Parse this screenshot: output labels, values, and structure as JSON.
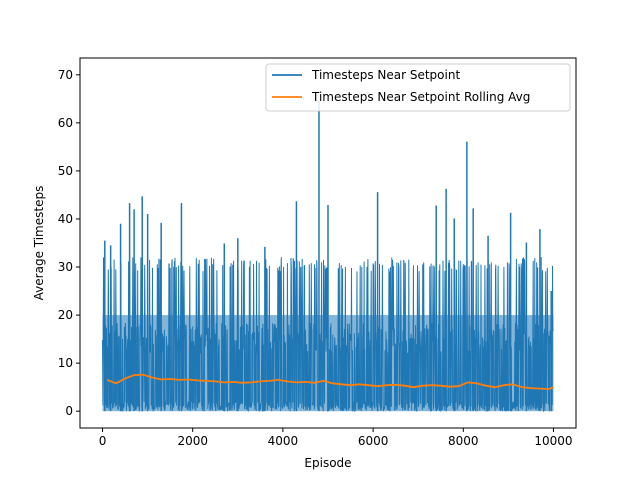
{
  "chart_data": {
    "type": "line",
    "title": "",
    "xlabel": "Episode",
    "ylabel": "Average Timesteps",
    "xlim": [
      -500,
      10500
    ],
    "ylim": [
      -3.5,
      73.5
    ],
    "x_ticks": [
      0,
      2000,
      4000,
      6000,
      8000,
      10000
    ],
    "x_tick_labels": [
      "0",
      "2000",
      "4000",
      "6000",
      "8000",
      "10000"
    ],
    "y_ticks": [
      0,
      10,
      20,
      30,
      40,
      50,
      60,
      70
    ],
    "y_tick_labels": [
      "0",
      "10",
      "20",
      "30",
      "40",
      "50",
      "60",
      "70"
    ],
    "grid": false,
    "legend_position": "top-right",
    "series": [
      {
        "name": "Timesteps Near Setpoint",
        "color": "#1f77b4",
        "x_range": [
          0,
          10000
        ],
        "band_y_range": [
          0,
          20
        ],
        "points": [
          {
            "x": 50,
            "y": 35.5
          },
          {
            "x": 180,
            "y": 34.5
          },
          {
            "x": 400,
            "y": 39
          },
          {
            "x": 600,
            "y": 43.3
          },
          {
            "x": 700,
            "y": 42
          },
          {
            "x": 880,
            "y": 44.7
          },
          {
            "x": 1000,
            "y": 41
          },
          {
            "x": 1300,
            "y": 39.2
          },
          {
            "x": 1750,
            "y": 43.3
          },
          {
            "x": 2700,
            "y": 34.9
          },
          {
            "x": 3000,
            "y": 36
          },
          {
            "x": 3600,
            "y": 34.2
          },
          {
            "x": 4300,
            "y": 43.7
          },
          {
            "x": 4800,
            "y": 64.6
          },
          {
            "x": 5000,
            "y": 42.9
          },
          {
            "x": 6100,
            "y": 45.6
          },
          {
            "x": 7400,
            "y": 42.8
          },
          {
            "x": 7620,
            "y": 46.3
          },
          {
            "x": 7800,
            "y": 40.1
          },
          {
            "x": 8080,
            "y": 56.1
          },
          {
            "x": 8220,
            "y": 42.2
          },
          {
            "x": 8550,
            "y": 36.5
          },
          {
            "x": 9050,
            "y": 41.3
          },
          {
            "x": 9400,
            "y": 35.1
          },
          {
            "x": 9700,
            "y": 37.9
          },
          {
            "x": 9950,
            "y": 25
          }
        ]
      },
      {
        "name": "Timesteps Near Setpoint Rolling Avg",
        "color": "#ff7f0e",
        "x": [
          100,
          300,
          500,
          700,
          900,
          1100,
          1300,
          1500,
          1700,
          1900,
          2100,
          2300,
          2500,
          2700,
          2900,
          3100,
          3300,
          3500,
          3700,
          3900,
          4100,
          4300,
          4500,
          4700,
          4900,
          5100,
          5300,
          5500,
          5700,
          5900,
          6100,
          6300,
          6500,
          6700,
          6900,
          7100,
          7300,
          7500,
          7700,
          7900,
          8100,
          8300,
          8500,
          8700,
          8900,
          9100,
          9300,
          9500,
          9700,
          9900,
          10000
        ],
        "values": [
          6.5,
          5.8,
          6.8,
          7.5,
          7.6,
          7.0,
          6.6,
          6.7,
          6.5,
          6.6,
          6.4,
          6.3,
          6.2,
          6.0,
          6.1,
          5.9,
          6.0,
          6.2,
          6.3,
          6.5,
          6.2,
          6.0,
          6.1,
          5.9,
          6.3,
          5.8,
          5.6,
          5.4,
          5.6,
          5.4,
          5.2,
          5.4,
          5.5,
          5.3,
          5.0,
          5.3,
          5.4,
          5.3,
          5.1,
          5.2,
          6.0,
          5.8,
          5.3,
          5.0,
          5.4,
          5.6,
          5.0,
          4.8,
          4.7,
          4.6,
          5.0
        ]
      }
    ]
  }
}
